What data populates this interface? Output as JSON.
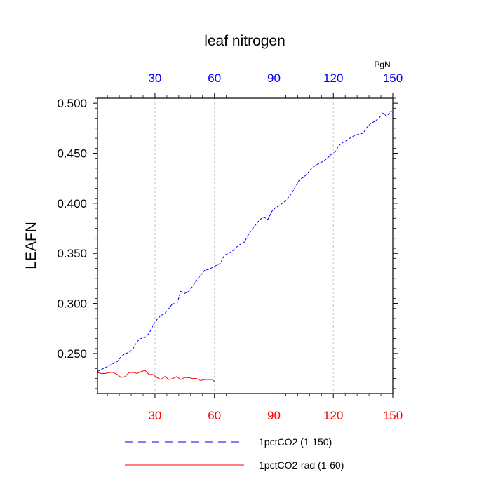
{
  "chart_data": {
    "type": "line",
    "title": "leaf nitrogen",
    "ylabel": "LEAFN",
    "top_axis_unit": "PgN",
    "xlim": [
      1,
      150
    ],
    "ylim": [
      0.21,
      0.505
    ],
    "x_ticks": [
      30,
      60,
      90,
      120,
      150
    ],
    "x_tick_labels": [
      "30",
      "60",
      "90",
      "120",
      "150"
    ],
    "y_ticks": [
      0.25,
      0.3,
      0.35,
      0.4,
      0.45,
      0.5
    ],
    "y_tick_labels": [
      "0.250",
      "0.300",
      "0.350",
      "0.400",
      "0.450",
      "0.500"
    ],
    "grid": "vertical dashed at major x ticks",
    "bottom_tick_color": "#ff0000",
    "top_tick_color": "#0000ff",
    "legend_position": "bottom",
    "series": [
      {
        "name": "1pctCO2 (1-150)",
        "color": "#0000ff",
        "dash": "dashed",
        "x": [
          1,
          3,
          5,
          7,
          9,
          11,
          13,
          15,
          17,
          19,
          21,
          23,
          25,
          27,
          29,
          31,
          33,
          35,
          37,
          39,
          41,
          43,
          45,
          47,
          49,
          51,
          53,
          55,
          57,
          59,
          61,
          63,
          65,
          67,
          69,
          71,
          73,
          75,
          77,
          79,
          81,
          83,
          85,
          87,
          89,
          91,
          93,
          95,
          97,
          99,
          101,
          103,
          105,
          107,
          109,
          111,
          113,
          115,
          117,
          119,
          121,
          123,
          125,
          127,
          129,
          131,
          133,
          135,
          137,
          139,
          141,
          143,
          145,
          147,
          149,
          150
        ],
        "values": [
          0.232,
          0.234,
          0.236,
          0.238,
          0.24,
          0.242,
          0.247,
          0.25,
          0.251,
          0.255,
          0.262,
          0.265,
          0.266,
          0.27,
          0.278,
          0.284,
          0.288,
          0.29,
          0.295,
          0.3,
          0.299,
          0.312,
          0.31,
          0.312,
          0.317,
          0.323,
          0.328,
          0.333,
          0.334,
          0.336,
          0.338,
          0.34,
          0.348,
          0.35,
          0.352,
          0.356,
          0.359,
          0.361,
          0.368,
          0.374,
          0.379,
          0.384,
          0.386,
          0.384,
          0.392,
          0.396,
          0.398,
          0.401,
          0.405,
          0.41,
          0.417,
          0.424,
          0.426,
          0.43,
          0.435,
          0.438,
          0.44,
          0.442,
          0.445,
          0.449,
          0.452,
          0.458,
          0.461,
          0.463,
          0.466,
          0.468,
          0.469,
          0.47,
          0.476,
          0.48,
          0.482,
          0.485,
          0.49,
          0.487,
          0.492,
          0.491
        ]
      },
      {
        "name": "1pctCO2-rad (1-60)",
        "color": "#ff0000",
        "dash": "solid",
        "x": [
          1,
          3,
          5,
          7,
          9,
          11,
          13,
          15,
          17,
          19,
          21,
          23,
          25,
          27,
          29,
          31,
          33,
          35,
          37,
          39,
          41,
          43,
          45,
          47,
          49,
          51,
          53,
          55,
          57,
          59,
          60
        ],
        "values": [
          0.231,
          0.23,
          0.23,
          0.231,
          0.231,
          0.229,
          0.226,
          0.227,
          0.231,
          0.231,
          0.23,
          0.232,
          0.233,
          0.229,
          0.229,
          0.226,
          0.224,
          0.227,
          0.224,
          0.225,
          0.227,
          0.224,
          0.226,
          0.226,
          0.225,
          0.225,
          0.223,
          0.224,
          0.224,
          0.224,
          0.222
        ]
      }
    ]
  }
}
